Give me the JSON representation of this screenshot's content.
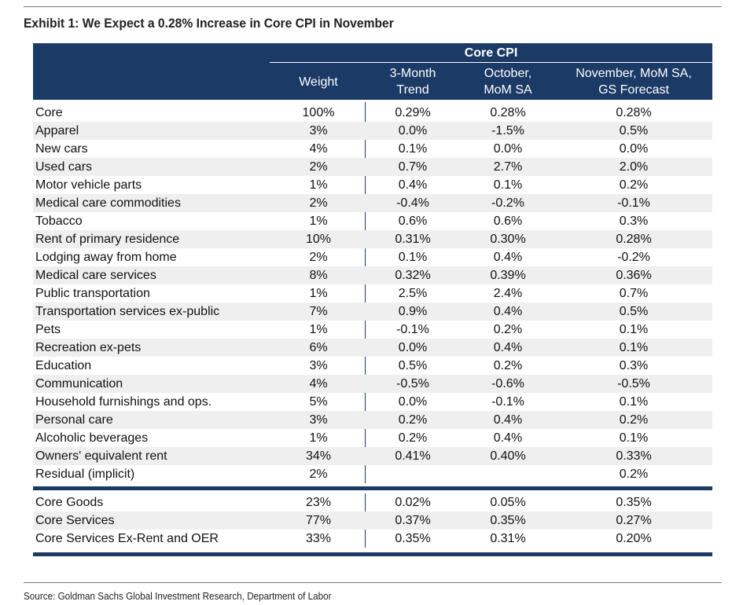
{
  "header": {
    "title": "Exhibit 1: We Expect a 0.28% Increase in Core CPI in November"
  },
  "table": {
    "group_header": "Core CPI",
    "columns": [
      "Weight",
      "3-Month\nTrend",
      "October,\nMoM SA",
      "November, MoM SA,\nGS Forecast"
    ],
    "rows": [
      [
        "Core",
        "100%",
        "0.29%",
        "0.28%",
        "0.28%"
      ],
      [
        "Apparel",
        "3%",
        "0.0%",
        "-1.5%",
        "0.5%"
      ],
      [
        "New cars",
        "4%",
        "0.1%",
        "0.0%",
        "0.0%"
      ],
      [
        "Used cars",
        "2%",
        "0.7%",
        "2.7%",
        "2.0%"
      ],
      [
        "Motor vehicle parts",
        "1%",
        "0.4%",
        "0.1%",
        "0.2%"
      ],
      [
        "Medical care commodities",
        "2%",
        "-0.4%",
        "-0.2%",
        "-0.1%"
      ],
      [
        "Tobacco",
        "1%",
        "0.6%",
        "0.6%",
        "0.3%"
      ],
      [
        "Rent of primary residence",
        "10%",
        "0.31%",
        "0.30%",
        "0.28%"
      ],
      [
        "Lodging away from home",
        "2%",
        "0.1%",
        "0.4%",
        "-0.2%"
      ],
      [
        "Medical care services",
        "8%",
        "0.32%",
        "0.39%",
        "0.36%"
      ],
      [
        "Public transportation",
        "1%",
        "2.5%",
        "2.4%",
        "0.7%"
      ],
      [
        "Transportation services ex-public",
        "7%",
        "0.9%",
        "0.4%",
        "0.5%"
      ],
      [
        "Pets",
        "1%",
        "-0.1%",
        "0.2%",
        "0.1%"
      ],
      [
        "Recreation ex-pets",
        "6%",
        "0.0%",
        "0.4%",
        "0.1%"
      ],
      [
        "Education",
        "3%",
        "0.5%",
        "0.2%",
        "0.3%"
      ],
      [
        "Communication",
        "4%",
        "-0.5%",
        "-0.6%",
        "-0.5%"
      ],
      [
        "Household furnishings and ops.",
        "5%",
        "0.0%",
        "-0.1%",
        "0.1%"
      ],
      [
        "Personal care",
        "3%",
        "0.2%",
        "0.4%",
        "0.2%"
      ],
      [
        "Alcoholic beverages",
        "1%",
        "0.2%",
        "0.4%",
        "0.1%"
      ],
      [
        "Owners' equivalent rent",
        "34%",
        "0.41%",
        "0.40%",
        "0.33%"
      ],
      [
        "Residual (implicit)",
        "2%",
        null,
        null,
        "0.2%"
      ]
    ],
    "summary_rows": [
      [
        "Core Goods",
        "23%",
        "0.02%",
        "0.05%",
        "0.35%"
      ],
      [
        "Core Services",
        "77%",
        "0.37%",
        "0.35%",
        "0.27%"
      ],
      [
        "Core Services Ex-Rent and OER",
        "33%",
        "0.35%",
        "0.31%",
        "0.20%"
      ]
    ]
  },
  "footer": {
    "source": "Source: Goldman Sachs Global Investment Research, Department of Labor"
  }
}
